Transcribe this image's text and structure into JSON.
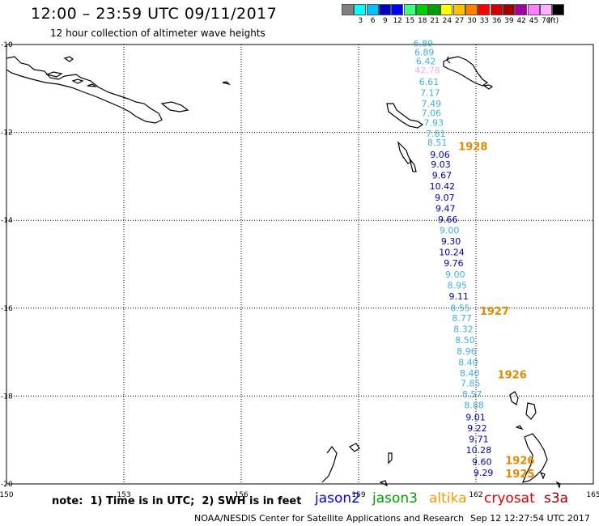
{
  "header": {
    "title": "12:00 – 23:59 UTC 09/11/2017",
    "subtitle": "12 hour collection of altimeter wave heights"
  },
  "scale": {
    "unit_label": "(ft)",
    "entries": [
      {
        "label": "",
        "color": "#808080"
      },
      {
        "label": "3",
        "color": "#00ffff"
      },
      {
        "label": "6",
        "color": "#00c0ff"
      },
      {
        "label": "9",
        "color": "#0000c0"
      },
      {
        "label": "12",
        "color": "#0000ff"
      },
      {
        "label": "15",
        "color": "#40ff80"
      },
      {
        "label": "18",
        "color": "#00d000"
      },
      {
        "label": "21",
        "color": "#00a000"
      },
      {
        "label": "24",
        "color": "#ffff00"
      },
      {
        "label": "27",
        "color": "#ffc000"
      },
      {
        "label": "30",
        "color": "#ff8000"
      },
      {
        "label": "33",
        "color": "#ff0000"
      },
      {
        "label": "36",
        "color": "#d00000"
      },
      {
        "label": "39",
        "color": "#a00000"
      },
      {
        "label": "42",
        "color": "#a000a0"
      },
      {
        "label": "45",
        "color": "#ff80ff"
      },
      {
        "label": "70",
        "color": "#ffb0ff"
      },
      {
        "label": "",
        "color": "#000000"
      }
    ]
  },
  "map": {
    "lon_range": [
      150,
      165
    ],
    "lat_range": [
      -10,
      -20
    ],
    "lon_ticks": [
      "150",
      "153",
      "156",
      "159",
      "162",
      "165"
    ],
    "lat_ticks": [
      "-10",
      "-12",
      "-14",
      "-16",
      "-18",
      "-20"
    ],
    "grid": true,
    "soundings": [
      {
        "text": "6.89",
        "lon": 160.65,
        "lat": -10.05,
        "color": "#40b0e0"
      },
      {
        "text": "6.89",
        "lon": 160.68,
        "lat": -10.25,
        "color": "#40b0e0"
      },
      {
        "text": "6.42",
        "lon": 160.72,
        "lat": -10.45,
        "color": "#40b0e0"
      },
      {
        "text": "42.78",
        "lon": 160.76,
        "lat": -10.65,
        "color": "#e0b0f0"
      },
      {
        "text": "6.61",
        "lon": 160.8,
        "lat": -10.92,
        "color": "#40b0e0"
      },
      {
        "text": "7.17",
        "lon": 160.83,
        "lat": -11.17,
        "color": "#40b0e0"
      },
      {
        "text": "7.49",
        "lon": 160.86,
        "lat": -11.42,
        "color": "#40b0e0"
      },
      {
        "text": "7.06",
        "lon": 160.86,
        "lat": -11.63,
        "color": "#40b0e0"
      },
      {
        "text": "7.93",
        "lon": 160.92,
        "lat": -11.85,
        "color": "#40b0e0"
      },
      {
        "text": "7.81",
        "lon": 160.97,
        "lat": -12.1,
        "color": "#40b0e0"
      },
      {
        "text": "8.51",
        "lon": 161.01,
        "lat": -12.3,
        "color": "#40b0e0"
      },
      {
        "text": "9.06",
        "lon": 161.08,
        "lat": -12.58,
        "color": "#0000b0"
      },
      {
        "text": "9.03",
        "lon": 161.1,
        "lat": -12.8,
        "color": "#0000b0"
      },
      {
        "text": "9.67",
        "lon": 161.13,
        "lat": -13.05,
        "color": "#0000b0"
      },
      {
        "text": "10.42",
        "lon": 161.14,
        "lat": -13.3,
        "color": "#0000b0"
      },
      {
        "text": "9.07",
        "lon": 161.2,
        "lat": -13.55,
        "color": "#0000b0"
      },
      {
        "text": "9.47",
        "lon": 161.22,
        "lat": -13.8,
        "color": "#0000b0"
      },
      {
        "text": "9.66",
        "lon": 161.28,
        "lat": -14.05,
        "color": "#0000b0"
      },
      {
        "text": "9.00",
        "lon": 161.32,
        "lat": -14.3,
        "color": "#40b0e0"
      },
      {
        "text": "9.30",
        "lon": 161.36,
        "lat": -14.55,
        "color": "#0000b0"
      },
      {
        "text": "10.24",
        "lon": 161.38,
        "lat": -14.8,
        "color": "#0000b0"
      },
      {
        "text": "9.76",
        "lon": 161.43,
        "lat": -15.05,
        "color": "#0000b0"
      },
      {
        "text": "9.00",
        "lon": 161.47,
        "lat": -15.3,
        "color": "#40b0e0"
      },
      {
        "text": "8.95",
        "lon": 161.52,
        "lat": -15.55,
        "color": "#40b0e0"
      },
      {
        "text": "9.11",
        "lon": 161.56,
        "lat": -15.8,
        "color": "#0000b0"
      },
      {
        "text": "8.55",
        "lon": 161.6,
        "lat": -16.07,
        "color": "#40b0e0"
      },
      {
        "text": "8.77",
        "lon": 161.64,
        "lat": -16.3,
        "color": "#40b0e0"
      },
      {
        "text": "8.32",
        "lon": 161.68,
        "lat": -16.55,
        "color": "#40b0e0"
      },
      {
        "text": "8.50",
        "lon": 161.72,
        "lat": -16.8,
        "color": "#40b0e0"
      },
      {
        "text": "8.96",
        "lon": 161.76,
        "lat": -17.05,
        "color": "#40b0e0"
      },
      {
        "text": "8.40",
        "lon": 161.8,
        "lat": -17.3,
        "color": "#40b0e0"
      },
      {
        "text": "8.40",
        "lon": 161.84,
        "lat": -17.55,
        "color": "#40b0e0"
      },
      {
        "text": "7.85",
        "lon": 161.86,
        "lat": -17.78,
        "color": "#40b0e0"
      },
      {
        "text": "8.57",
        "lon": 161.9,
        "lat": -18.03,
        "color": "#40b0e0"
      },
      {
        "text": "8.88",
        "lon": 161.95,
        "lat": -18.28,
        "color": "#40b0e0"
      },
      {
        "text": "9.01",
        "lon": 161.99,
        "lat": -18.55,
        "color": "#0000b0"
      },
      {
        "text": "9.22",
        "lon": 162.03,
        "lat": -18.8,
        "color": "#0000b0"
      },
      {
        "text": "9.71",
        "lon": 162.07,
        "lat": -19.05,
        "color": "#0000b0"
      },
      {
        "text": "10.28",
        "lon": 162.07,
        "lat": -19.3,
        "color": "#0000b0"
      },
      {
        "text": "9.60",
        "lon": 162.15,
        "lat": -19.57,
        "color": "#0000b0"
      },
      {
        "text": "9.29",
        "lon": 162.19,
        "lat": -19.82,
        "color": "#0000b0"
      }
    ],
    "time_labels": [
      {
        "text": "1928",
        "lon": 161.55,
        "lat": -12.4
      },
      {
        "text": "1927",
        "lon": 162.1,
        "lat": -16.15
      },
      {
        "text": "1926",
        "lon": 162.55,
        "lat": -17.6
      },
      {
        "text": "1926",
        "lon": 162.75,
        "lat": -19.55
      },
      {
        "text": "1925",
        "lon": 162.75,
        "lat": -19.85
      }
    ],
    "time_label_color": "#e08a00"
  },
  "note": "note:  1) Time is in UTC;  2) SWH is in feet",
  "legend": [
    {
      "name": "jason2",
      "color": "#0000ff"
    },
    {
      "name": "jason3",
      "color": "#00a000"
    },
    {
      "name": "altika",
      "color": "#ff9900"
    },
    {
      "name": "cryosat",
      "color": "#e00000"
    },
    {
      "name": "s3a",
      "color": "#a00000"
    }
  ],
  "footer": "NOAA/NESDIS Center for Satellite Applications and Research",
  "timestamp": "Sep 12 12:27:54 UTC 2017"
}
